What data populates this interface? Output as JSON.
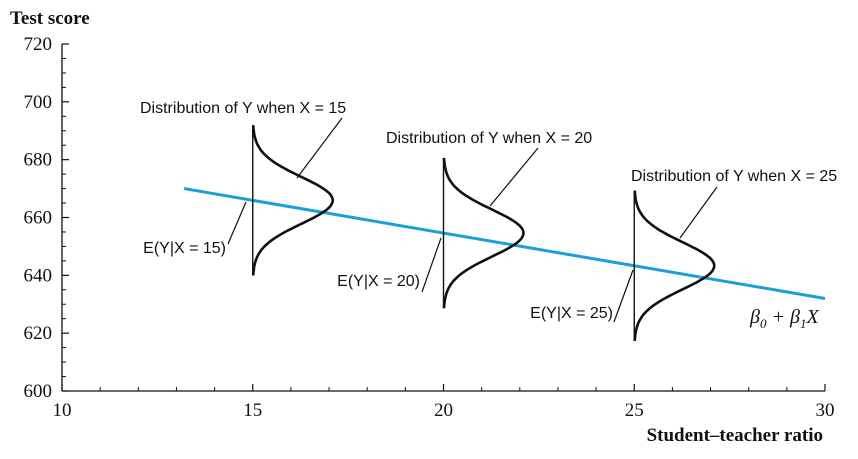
{
  "chart_data": {
    "type": "line",
    "title": "",
    "ylabel": "Test score",
    "xlabel": "Student–teacher ratio",
    "xlim": [
      10,
      30
    ],
    "ylim": [
      600,
      720
    ],
    "x_ticks": [
      10,
      15,
      20,
      25,
      30
    ],
    "y_ticks": [
      600,
      620,
      640,
      660,
      680,
      700,
      720
    ],
    "grid": false,
    "line_color": "#1aa0d8",
    "series": [
      {
        "label": "β0 + β1X",
        "x": [
          13.2,
          30
        ],
        "y": [
          670,
          632
        ]
      }
    ],
    "distributions": [
      {
        "x": 15,
        "mean": 666,
        "spread": 26,
        "label": "Distribution of Y when X = 15",
        "mean_label": "E(Y|X = 15)"
      },
      {
        "x": 20,
        "mean": 654.5,
        "spread": 26,
        "label": "Distribution of Y when X = 20",
        "mean_label": "E(Y|X = 20)"
      },
      {
        "x": 25,
        "mean": 643,
        "spread": 26,
        "label": "Distribution of Y when X = 25",
        "mean_label": "E(Y|X = 25)"
      }
    ]
  }
}
